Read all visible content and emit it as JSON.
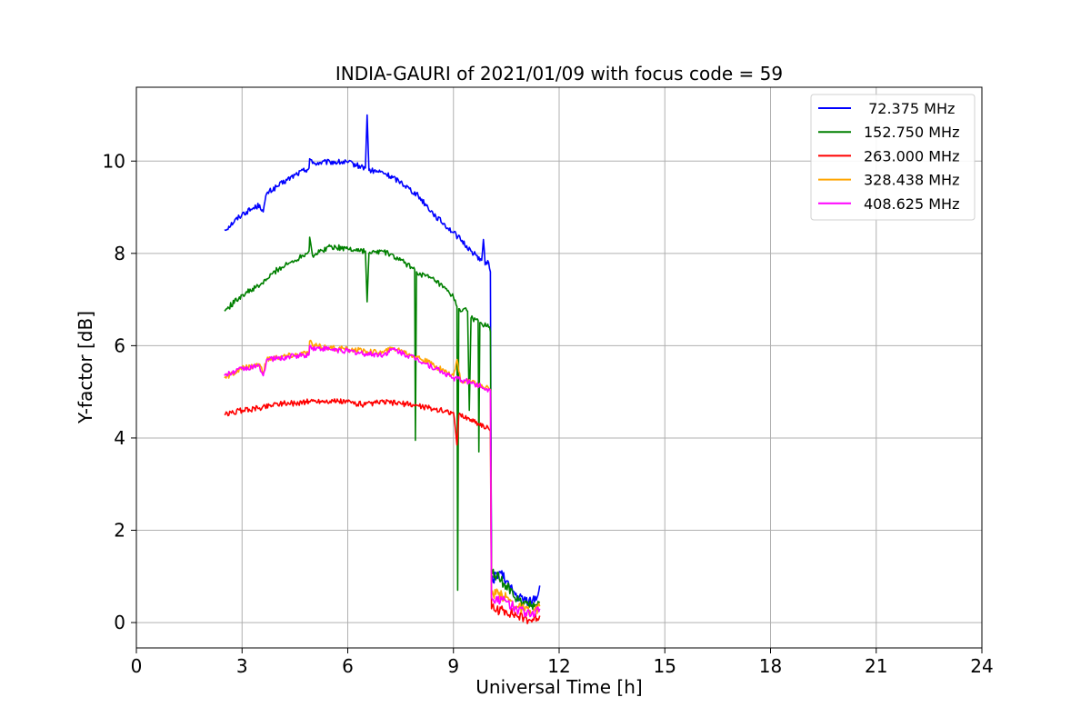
{
  "chart_data": {
    "type": "line",
    "title": "INDIA-GAURI of 2021/01/09 with focus code = 59",
    "xlabel": "Universal Time [h]",
    "ylabel": "Y-factor [dB]",
    "xlim": [
      0,
      24
    ],
    "ylim": [
      -0.55,
      11.6
    ],
    "xticks": [
      0,
      3,
      6,
      9,
      12,
      15,
      18,
      21,
      24
    ],
    "yticks": [
      0,
      2,
      4,
      6,
      8,
      10
    ],
    "grid": true,
    "legend_position": "top-right",
    "series": [
      {
        "name": " 72.375 MHz",
        "color": "#0000ff",
        "points": [
          [
            2.5,
            8.5
          ],
          [
            3.0,
            8.85
          ],
          [
            3.5,
            9.05
          ],
          [
            3.6,
            8.9
          ],
          [
            3.7,
            9.3
          ],
          [
            4.0,
            9.45
          ],
          [
            4.5,
            9.7
          ],
          [
            4.9,
            9.85
          ],
          [
            4.92,
            10.05
          ],
          [
            5.0,
            9.95
          ],
          [
            5.5,
            9.98
          ],
          [
            6.0,
            9.97
          ],
          [
            6.5,
            9.85
          ],
          [
            6.55,
            11.0
          ],
          [
            6.6,
            9.8
          ],
          [
            7.0,
            9.75
          ],
          [
            7.5,
            9.55
          ],
          [
            8.0,
            9.25
          ],
          [
            8.5,
            8.8
          ],
          [
            9.0,
            8.45
          ],
          [
            9.2,
            8.3
          ],
          [
            9.5,
            8.05
          ],
          [
            9.8,
            7.85
          ],
          [
            9.85,
            8.3
          ],
          [
            9.9,
            7.75
          ],
          [
            10.0,
            7.8
          ],
          [
            10.05,
            7.6
          ],
          [
            10.08,
            0.9
          ],
          [
            10.3,
            1.1
          ],
          [
            10.5,
            0.9
          ],
          [
            10.8,
            0.55
          ],
          [
            11.0,
            0.5
          ],
          [
            11.2,
            0.45
          ],
          [
            11.4,
            0.6
          ],
          [
            11.45,
            0.8
          ]
        ]
      },
      {
        "name": "152.750 MHz",
        "color": "#008000",
        "points": [
          [
            2.5,
            6.75
          ],
          [
            3.0,
            7.1
          ],
          [
            3.5,
            7.3
          ],
          [
            4.0,
            7.65
          ],
          [
            4.5,
            7.85
          ],
          [
            4.9,
            8.05
          ],
          [
            4.92,
            8.35
          ],
          [
            5.0,
            7.95
          ],
          [
            5.5,
            8.15
          ],
          [
            6.0,
            8.1
          ],
          [
            6.5,
            8.05
          ],
          [
            6.55,
            6.95
          ],
          [
            6.6,
            8.0
          ],
          [
            7.0,
            8.05
          ],
          [
            7.5,
            7.85
          ],
          [
            7.9,
            7.65
          ],
          [
            7.92,
            3.95
          ],
          [
            7.95,
            7.6
          ],
          [
            8.5,
            7.4
          ],
          [
            9.0,
            7.05
          ],
          [
            9.1,
            6.85
          ],
          [
            9.12,
            0.7
          ],
          [
            9.15,
            6.8
          ],
          [
            9.4,
            6.75
          ],
          [
            9.45,
            4.6
          ],
          [
            9.5,
            6.6
          ],
          [
            9.7,
            6.55
          ],
          [
            9.72,
            3.7
          ],
          [
            9.75,
            6.5
          ],
          [
            10.0,
            6.4
          ],
          [
            10.05,
            6.3
          ],
          [
            10.08,
            1.1
          ],
          [
            10.3,
            0.95
          ],
          [
            10.5,
            0.8
          ],
          [
            10.8,
            0.5
          ],
          [
            11.0,
            0.4
          ],
          [
            11.2,
            0.35
          ],
          [
            11.45,
            0.45
          ]
        ]
      },
      {
        "name": "263.000 MHz",
        "color": "#ff0000",
        "points": [
          [
            2.5,
            4.5
          ],
          [
            3.0,
            4.6
          ],
          [
            3.5,
            4.65
          ],
          [
            4.0,
            4.75
          ],
          [
            4.5,
            4.75
          ],
          [
            5.0,
            4.8
          ],
          [
            5.5,
            4.8
          ],
          [
            6.0,
            4.78
          ],
          [
            6.5,
            4.72
          ],
          [
            7.0,
            4.78
          ],
          [
            7.5,
            4.75
          ],
          [
            8.0,
            4.7
          ],
          [
            8.5,
            4.62
          ],
          [
            9.0,
            4.55
          ],
          [
            9.1,
            3.85
          ],
          [
            9.15,
            4.5
          ],
          [
            9.5,
            4.4
          ],
          [
            10.0,
            4.2
          ],
          [
            10.05,
            4.15
          ],
          [
            10.08,
            0.3
          ],
          [
            10.5,
            0.25
          ],
          [
            10.8,
            0.15
          ],
          [
            11.0,
            0.1
          ],
          [
            11.2,
            0.05
          ],
          [
            11.45,
            0.15
          ]
        ]
      },
      {
        "name": "328.438 MHz",
        "color": "#ffa500",
        "points": [
          [
            2.5,
            5.3
          ],
          [
            3.0,
            5.5
          ],
          [
            3.5,
            5.6
          ],
          [
            3.6,
            5.4
          ],
          [
            3.7,
            5.7
          ],
          [
            4.0,
            5.75
          ],
          [
            4.5,
            5.8
          ],
          [
            4.9,
            5.85
          ],
          [
            4.92,
            6.1
          ],
          [
            5.0,
            6.0
          ],
          [
            5.5,
            5.95
          ],
          [
            6.0,
            5.92
          ],
          [
            6.5,
            5.88
          ],
          [
            7.0,
            5.85
          ],
          [
            7.3,
            5.95
          ],
          [
            7.5,
            5.9
          ],
          [
            8.0,
            5.75
          ],
          [
            8.5,
            5.55
          ],
          [
            9.0,
            5.35
          ],
          [
            9.1,
            5.7
          ],
          [
            9.2,
            5.25
          ],
          [
            9.5,
            5.2
          ],
          [
            10.0,
            5.08
          ],
          [
            10.05,
            5.05
          ],
          [
            10.08,
            0.65
          ],
          [
            10.5,
            0.55
          ],
          [
            10.8,
            0.35
          ],
          [
            11.0,
            0.3
          ],
          [
            11.2,
            0.2
          ],
          [
            11.45,
            0.35
          ]
        ]
      },
      {
        "name": "408.625 MHz",
        "color": "#ff00ff",
        "points": [
          [
            2.5,
            5.35
          ],
          [
            3.0,
            5.5
          ],
          [
            3.5,
            5.55
          ],
          [
            3.6,
            5.35
          ],
          [
            3.7,
            5.7
          ],
          [
            4.0,
            5.72
          ],
          [
            4.5,
            5.78
          ],
          [
            4.9,
            5.8
          ],
          [
            4.92,
            6.0
          ],
          [
            5.0,
            5.95
          ],
          [
            5.5,
            5.92
          ],
          [
            6.0,
            5.88
          ],
          [
            6.5,
            5.82
          ],
          [
            7.0,
            5.8
          ],
          [
            7.3,
            5.92
          ],
          [
            7.5,
            5.85
          ],
          [
            8.0,
            5.7
          ],
          [
            8.5,
            5.5
          ],
          [
            9.0,
            5.3
          ],
          [
            9.5,
            5.2
          ],
          [
            10.0,
            5.05
          ],
          [
            10.05,
            5.02
          ],
          [
            10.08,
            0.55
          ],
          [
            10.5,
            0.45
          ],
          [
            10.8,
            0.3
          ],
          [
            11.0,
            0.25
          ],
          [
            11.2,
            0.15
          ],
          [
            11.45,
            0.3
          ]
        ]
      }
    ]
  }
}
